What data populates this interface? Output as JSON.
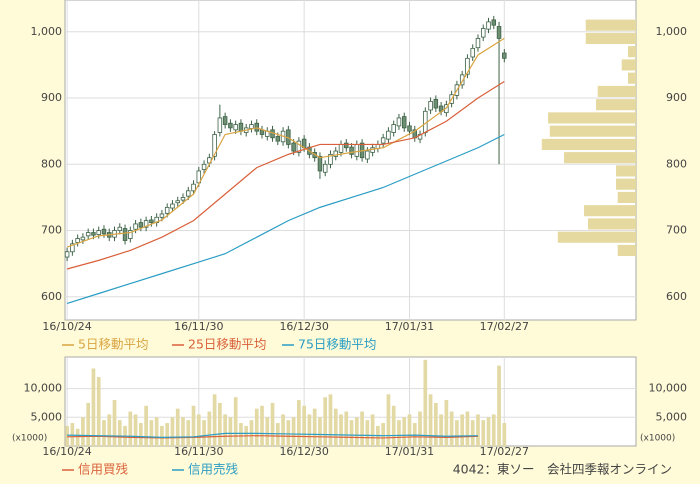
{
  "chart_data": [
    {
      "type": "candlestick",
      "xlim": [
        -0.4,
        108
      ],
      "ylim": [
        565,
        1048
      ],
      "yticks": [
        600,
        700,
        800,
        900,
        {
          "value": 1000,
          "label": "1,000"
        }
      ],
      "xticks": [
        {
          "value": 0,
          "label": "16/10/24"
        },
        {
          "value": 25,
          "label": "16/11/30"
        },
        {
          "value": 45,
          "label": "16/12/30"
        },
        {
          "value": 65,
          "label": "17/01/31"
        },
        {
          "value": 83,
          "label": "17/02/27"
        }
      ],
      "grid": true,
      "up_color": "#ffffff",
      "down_color": "#6f8f74",
      "edge_color": "#3d6246",
      "open": [
        660,
        668,
        682,
        686,
        692,
        697,
        694,
        702,
        697,
        690,
        700,
        703,
        688,
        702,
        712,
        705,
        716,
        712,
        720,
        726,
        734,
        742,
        746,
        752,
        760,
        772,
        792,
        802,
        812,
        848,
        872,
        862,
        852,
        862,
        848,
        854,
        862,
        852,
        842,
        852,
        842,
        834,
        852,
        832,
        818,
        838,
        826,
        818,
        812,
        788,
        800,
        812,
        818,
        832,
        826,
        812,
        832,
        808,
        818,
        824,
        832,
        838,
        848,
        858,
        872,
        858,
        852,
        838,
        848,
        882,
        898,
        888,
        878,
        892,
        904,
        920,
        936,
        962,
        976,
        992,
        1004,
        1018,
        1008,
        968
      ],
      "high": [
        674,
        686,
        694,
        696,
        703,
        703,
        706,
        708,
        703,
        706,
        711,
        709,
        706,
        716,
        718,
        721,
        722,
        726,
        731,
        741,
        746,
        751,
        756,
        766,
        776,
        796,
        806,
        816,
        850,
        890,
        878,
        868,
        866,
        868,
        861,
        866,
        868,
        858,
        856,
        858,
        848,
        856,
        858,
        838,
        841,
        844,
        832,
        824,
        818,
        806,
        821,
        826,
        836,
        838,
        832,
        836,
        838,
        826,
        831,
        836,
        846,
        856,
        866,
        876,
        878,
        864,
        858,
        851,
        886,
        901,
        904,
        894,
        896,
        911,
        926,
        941,
        966,
        981,
        996,
        1011,
        1021,
        1024,
        1015,
        974
      ],
      "low": [
        654,
        662,
        676,
        680,
        686,
        687,
        688,
        689,
        684,
        684,
        694,
        679,
        682,
        696,
        699,
        699,
        706,
        706,
        714,
        720,
        728,
        736,
        740,
        746,
        754,
        766,
        786,
        796,
        806,
        842,
        854,
        849,
        846,
        844,
        842,
        848,
        844,
        839,
        836,
        834,
        829,
        828,
        824,
        814,
        812,
        819,
        809,
        804,
        778,
        782,
        794,
        806,
        812,
        819,
        809,
        806,
        804,
        802,
        812,
        818,
        826,
        832,
        842,
        852,
        849,
        844,
        834,
        832,
        842,
        876,
        879,
        874,
        872,
        886,
        898,
        914,
        930,
        956,
        970,
        986,
        998,
        1004,
        800,
        954
      ],
      "close": [
        668,
        680,
        688,
        690,
        697,
        693,
        700,
        695,
        690,
        700,
        705,
        685,
        700,
        710,
        705,
        715,
        712,
        720,
        725,
        735,
        740,
        745,
        750,
        760,
        770,
        790,
        800,
        810,
        845,
        870,
        860,
        855,
        860,
        850,
        855,
        860,
        850,
        845,
        850,
        840,
        835,
        850,
        830,
        820,
        835,
        825,
        815,
        810,
        790,
        800,
        815,
        820,
        830,
        825,
        815,
        830,
        810,
        820,
        825,
        830,
        840,
        850,
        860,
        870,
        855,
        850,
        840,
        845,
        880,
        895,
        885,
        880,
        890,
        905,
        920,
        935,
        960,
        975,
        990,
        1005,
        1015,
        1010,
        990,
        960
      ],
      "series": [
        {
          "name": "5日移動平均",
          "color": "#d9a441",
          "x": [
            0,
            6,
            12,
            18,
            24,
            30,
            36,
            42,
            48,
            54,
            60,
            66,
            72,
            78,
            83
          ],
          "values": [
            675,
            692,
            697,
            716,
            755,
            845,
            855,
            840,
            810,
            818,
            825,
            850,
            885,
            965,
            990
          ]
        },
        {
          "name": "25日移動平均",
          "color": "#d9603a",
          "x": [
            0,
            6,
            12,
            18,
            24,
            30,
            36,
            42,
            48,
            54,
            60,
            66,
            72,
            78,
            83
          ],
          "values": [
            642,
            655,
            670,
            690,
            715,
            755,
            795,
            815,
            830,
            830,
            830,
            840,
            865,
            900,
            925
          ]
        },
        {
          "name": "75日移動平均",
          "color": "#2a9dc4",
          "x": [
            0,
            6,
            12,
            18,
            24,
            30,
            36,
            42,
            48,
            54,
            60,
            66,
            72,
            78,
            83
          ],
          "values": [
            590,
            605,
            620,
            635,
            650,
            665,
            690,
            715,
            735,
            750,
            765,
            785,
            805,
            825,
            845
          ]
        }
      ],
      "profile": {
        "color": "#e6d9a0",
        "xlim": [
          0,
          100
        ],
        "prices": [
          1010,
          990,
          970,
          950,
          930,
          910,
          890,
          870,
          850,
          830,
          810,
          790,
          770,
          750,
          730,
          710,
          690,
          670
        ],
        "values": [
          8.8,
          8.8,
          1.4,
          2.5,
          1.4,
          6.7,
          7,
          15.4,
          15.1,
          16.5,
          12.6,
          3.5,
          3.5,
          3.2,
          9.1,
          8.4,
          13.7,
          3.2
        ]
      }
    },
    {
      "type": "bar",
      "xlim": [
        -0.4,
        108
      ],
      "ylim": [
        0,
        15500
      ],
      "yticks": [
        {
          "value": 5000,
          "label": "5,000"
        },
        {
          "value": 10000,
          "label": "10,000"
        }
      ],
      "unit_label": "(x1000)",
      "xticks": [
        {
          "value": 0,
          "label": "16/10/24"
        },
        {
          "value": 25,
          "label": "16/11/30"
        },
        {
          "value": 45,
          "label": "16/12/30"
        },
        {
          "value": 65,
          "label": "17/01/31"
        },
        {
          "value": 83,
          "label": "17/02/27"
        }
      ],
      "grid": true,
      "color": "#e3d9a4",
      "values": [
        3500,
        4000,
        3000,
        5000,
        7500,
        13500,
        12000,
        4500,
        5500,
        8000,
        4500,
        3500,
        6000,
        5500,
        4000,
        7000,
        4500,
        5000,
        3500,
        4000,
        5000,
        6500,
        5000,
        4500,
        7000,
        5500,
        4500,
        6000,
        9000,
        7500,
        5500,
        5000,
        8500,
        4000,
        3500,
        4500,
        6500,
        7000,
        5000,
        7500,
        4000,
        5500,
        4500,
        5000,
        8000,
        7000,
        5500,
        6500,
        5000,
        8500,
        9000,
        6500,
        5500,
        6000,
        4500,
        5000,
        6000,
        4500,
        5500,
        3500,
        4000,
        9000,
        7000,
        4500,
        5000,
        5500,
        4000,
        6000,
        15000,
        9000,
        7500,
        5500,
        8000,
        6000,
        4500,
        5500,
        6000,
        4500,
        5500,
        4500,
        5000,
        5500,
        14000,
        4000
      ],
      "series": [
        {
          "name": "信用買残",
          "color": "#d9603a",
          "x": [
            0,
            6,
            12,
            18,
            24,
            30,
            36,
            42,
            48,
            54,
            60,
            66,
            72,
            78
          ],
          "values": [
            1600,
            1700,
            1500,
            1400,
            1500,
            1700,
            1800,
            1700,
            1600,
            1500,
            1400,
            1600,
            1500,
            1700
          ]
        },
        {
          "name": "信用売残",
          "color": "#2a9dc4",
          "x": [
            0,
            6,
            12,
            18,
            24,
            30,
            36,
            42,
            48,
            54,
            60,
            66,
            72,
            78
          ],
          "values": [
            1900,
            1800,
            1700,
            1500,
            1600,
            2200,
            2200,
            2100,
            2000,
            1900,
            1800,
            1900,
            1700,
            1800
          ]
        }
      ]
    }
  ],
  "source": "4042：東ソー　会社四季報オンライン"
}
